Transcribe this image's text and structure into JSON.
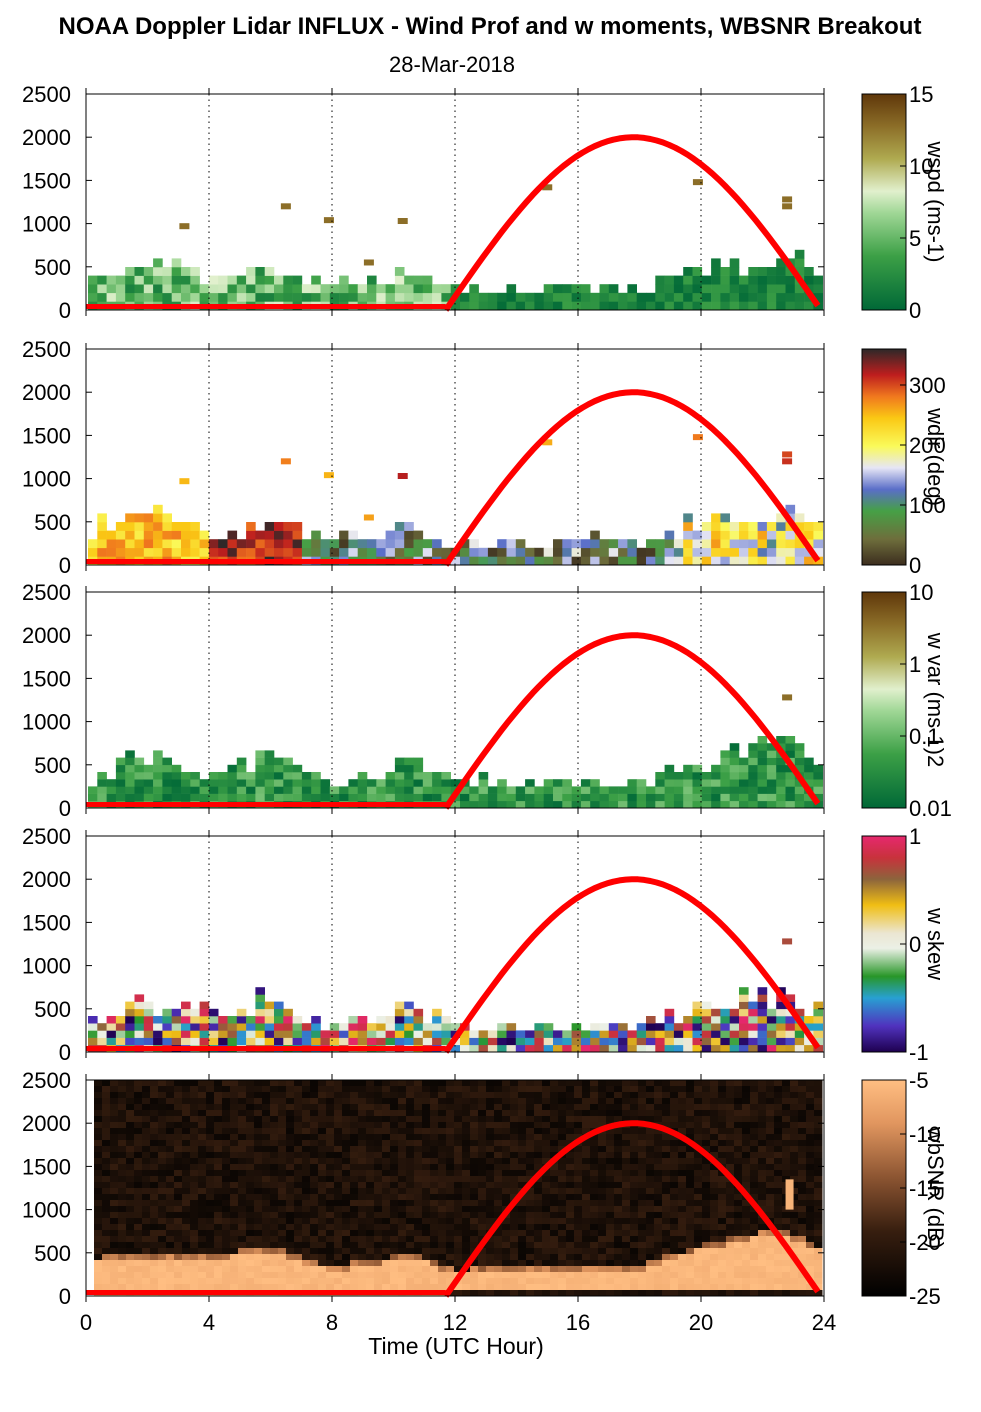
{
  "title": "NOAA Doppler Lidar INFLUX - Wind Prof and w moments, WBSNR Breakout",
  "subtitle": "28-Mar-2018",
  "xlabel": "Time (UTC Hour)",
  "x_ticks": [
    "0",
    "4",
    "8",
    "12",
    "16",
    "20",
    "24"
  ],
  "y_ticks": [
    "0",
    "500",
    "1000",
    "1500",
    "2000",
    "2500"
  ],
  "colors": {
    "sun_curve": "#ff0000",
    "axis": "#000000",
    "grid": "#000000"
  },
  "chart_data": [
    {
      "type": "heatmap",
      "variable": "wspd",
      "colorbar_label": "wspd (ms-1)",
      "colorbar_ticks": [
        "0",
        "5",
        "10",
        "15"
      ],
      "colorbar_range": [
        0,
        15
      ],
      "xlim": [
        0,
        24
      ],
      "ylim": [
        0,
        2500
      ],
      "grid": "dotted vertical at 4 h intervals",
      "echo_top_m": [
        {
          "x": 0,
          "y": 380
        },
        {
          "x": 1,
          "y": 400
        },
        {
          "x": 3,
          "y": 640
        },
        {
          "x": 4,
          "y": 320
        },
        {
          "x": 6,
          "y": 420
        },
        {
          "x": 8,
          "y": 300
        },
        {
          "x": 10.5,
          "y": 420
        },
        {
          "x": 12,
          "y": 250
        },
        {
          "x": 18,
          "y": 280
        },
        {
          "x": 20,
          "y": 480
        },
        {
          "x": 23,
          "y": 600
        },
        {
          "x": 24,
          "y": 500
        }
      ],
      "sun_elevation_curve": [
        {
          "x": 11.7,
          "y": 0
        },
        {
          "x": 17.8,
          "y": 2000
        },
        {
          "x": 23.8,
          "y": 150
        }
      ],
      "baseline": [
        {
          "x": 0,
          "y": 40
        },
        {
          "x": 11.7,
          "y": 40
        }
      ]
    },
    {
      "type": "heatmap",
      "variable": "wdir",
      "colorbar_label": "wdir (deg)",
      "colorbar_ticks": [
        "0",
        "100",
        "200",
        "300"
      ],
      "colorbar_range": [
        0,
        360
      ],
      "xlim": [
        0,
        24
      ],
      "ylim": [
        0,
        2500
      ],
      "grid": "dotted vertical at 4 h intervals",
      "echo_top_m": [
        {
          "x": 0,
          "y": 420
        },
        {
          "x": 3,
          "y": 650
        },
        {
          "x": 4,
          "y": 320
        },
        {
          "x": 6,
          "y": 480
        },
        {
          "x": 8,
          "y": 300
        },
        {
          "x": 10.5,
          "y": 440
        },
        {
          "x": 12,
          "y": 250
        },
        {
          "x": 18,
          "y": 300
        },
        {
          "x": 20,
          "y": 480
        },
        {
          "x": 23,
          "y": 560
        },
        {
          "x": 24,
          "y": 500
        }
      ],
      "sun_elevation_curve": [
        {
          "x": 11.7,
          "y": 0
        },
        {
          "x": 17.8,
          "y": 2000
        },
        {
          "x": 23.8,
          "y": 150
        }
      ],
      "baseline": [
        {
          "x": 0,
          "y": 40
        },
        {
          "x": 11.7,
          "y": 40
        }
      ]
    },
    {
      "type": "heatmap",
      "variable": "w var",
      "colorbar_label": "w var (ms-1)2",
      "colorbar_ticks": [
        "0.01",
        "0.1",
        "1",
        "10"
      ],
      "colorbar_range": [
        0.01,
        10
      ],
      "colorbar_scale": "log",
      "xlim": [
        0,
        24
      ],
      "ylim": [
        0,
        2500
      ],
      "grid": "dotted vertical at 4 h intervals",
      "echo_top_m": [
        {
          "x": 0.3,
          "y": 380
        },
        {
          "x": 1.5,
          "y": 560
        },
        {
          "x": 4,
          "y": 460
        },
        {
          "x": 6,
          "y": 620
        },
        {
          "x": 8,
          "y": 280
        },
        {
          "x": 10.7,
          "y": 560
        },
        {
          "x": 12,
          "y": 320
        },
        {
          "x": 18,
          "y": 300
        },
        {
          "x": 20,
          "y": 560
        },
        {
          "x": 22.5,
          "y": 720
        },
        {
          "x": 24,
          "y": 520
        }
      ],
      "sun_elevation_curve": [
        {
          "x": 11.7,
          "y": 0
        },
        {
          "x": 17.8,
          "y": 2000
        },
        {
          "x": 23.8,
          "y": 150
        }
      ],
      "baseline": [
        {
          "x": 0,
          "y": 40
        },
        {
          "x": 11.7,
          "y": 40
        }
      ]
    },
    {
      "type": "heatmap",
      "variable": "w skew",
      "colorbar_label": "w skew",
      "colorbar_ticks": [
        "-1",
        "0",
        "1"
      ],
      "colorbar_range": [
        -1,
        1
      ],
      "xlim": [
        0,
        24
      ],
      "ylim": [
        0,
        2500
      ],
      "grid": "dotted vertical at 4 h intervals",
      "echo_top_m": [
        {
          "x": 0.3,
          "y": 380
        },
        {
          "x": 1.5,
          "y": 540
        },
        {
          "x": 4,
          "y": 460
        },
        {
          "x": 6,
          "y": 600
        },
        {
          "x": 8,
          "y": 300
        },
        {
          "x": 10.7,
          "y": 540
        },
        {
          "x": 12,
          "y": 300
        },
        {
          "x": 18,
          "y": 300
        },
        {
          "x": 20,
          "y": 560
        },
        {
          "x": 22.5,
          "y": 700
        },
        {
          "x": 24,
          "y": 480
        }
      ],
      "sun_elevation_curve": [
        {
          "x": 11.7,
          "y": 0
        },
        {
          "x": 17.8,
          "y": 2000
        },
        {
          "x": 23.8,
          "y": 150
        }
      ],
      "baseline": [
        {
          "x": 0,
          "y": 40
        },
        {
          "x": 11.7,
          "y": 40
        }
      ]
    },
    {
      "type": "heatmap",
      "variable": "wbSNR",
      "colorbar_label": "wbSNR (dB)",
      "colorbar_ticks": [
        "-25",
        "-20",
        "-15",
        "-10",
        "-5"
      ],
      "colorbar_range": [
        -25,
        -5
      ],
      "xlim": [
        0,
        24
      ],
      "ylim": [
        0,
        2500
      ],
      "grid": "none",
      "echo_top_m": [
        {
          "x": 0.3,
          "y": 380
        },
        {
          "x": 1.5,
          "y": 440
        },
        {
          "x": 4,
          "y": 420
        },
        {
          "x": 6,
          "y": 520
        },
        {
          "x": 8,
          "y": 280
        },
        {
          "x": 10.7,
          "y": 440
        },
        {
          "x": 12,
          "y": 250
        },
        {
          "x": 18,
          "y": 280
        },
        {
          "x": 20,
          "y": 540
        },
        {
          "x": 22.5,
          "y": 720
        },
        {
          "x": 24,
          "y": 500
        }
      ],
      "sun_elevation_curve": [
        {
          "x": 11.7,
          "y": 0
        },
        {
          "x": 17.8,
          "y": 2000
        },
        {
          "x": 23.8,
          "y": 150
        }
      ],
      "baseline": [
        {
          "x": 0,
          "y": 40
        },
        {
          "x": 11.7,
          "y": 40
        }
      ]
    }
  ]
}
